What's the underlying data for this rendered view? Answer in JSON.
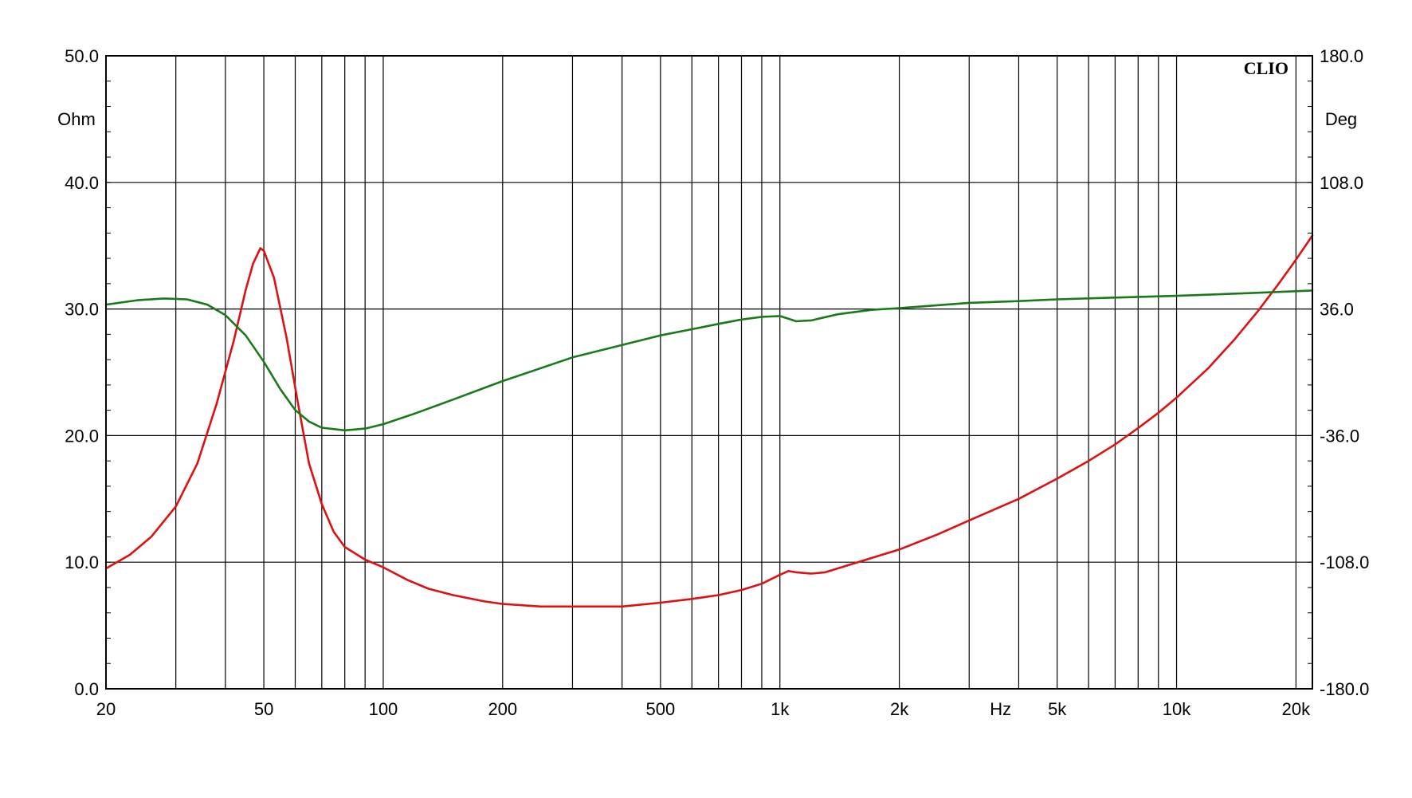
{
  "chart_data": {
    "type": "line",
    "brand": "CLIO",
    "x_axis": {
      "scale": "log",
      "range": [
        20,
        22000
      ],
      "unit_label": "Hz",
      "tick_labels": [
        {
          "value": 20,
          "label": "20"
        },
        {
          "value": 50,
          "label": "50"
        },
        {
          "value": 100,
          "label": "100"
        },
        {
          "value": 200,
          "label": "200"
        },
        {
          "value": 500,
          "label": "500"
        },
        {
          "value": 1000,
          "label": "1k"
        },
        {
          "value": 2000,
          "label": "2k"
        },
        {
          "value": 5000,
          "label": "5k"
        },
        {
          "value": 10000,
          "label": "10k"
        },
        {
          "value": 20000,
          "label": "20k"
        }
      ],
      "unit_label_at": 3600,
      "gridlines": [
        30,
        40,
        50,
        60,
        70,
        80,
        90,
        100,
        200,
        300,
        400,
        500,
        600,
        700,
        800,
        900,
        1000,
        2000,
        3000,
        4000,
        5000,
        6000,
        7000,
        8000,
        9000,
        10000,
        20000
      ]
    },
    "y_left": {
      "label": "Ohm",
      "range": [
        0,
        50
      ],
      "tick_labels": [
        {
          "value": 0,
          "label": "0.0"
        },
        {
          "value": 10,
          "label": "10.0"
        },
        {
          "value": 20,
          "label": "20.0"
        },
        {
          "value": 30,
          "label": "30.0"
        },
        {
          "value": 40,
          "label": "40.0"
        },
        {
          "value": 50,
          "label": "50.0"
        }
      ]
    },
    "y_right": {
      "label": "Deg",
      "range": [
        -180,
        180
      ],
      "tick_labels": [
        {
          "value": -180,
          "label": "-180.0"
        },
        {
          "value": -108,
          "label": "-108.0"
        },
        {
          "value": -36,
          "label": "-36.0"
        },
        {
          "value": 36,
          "label": "36.0"
        },
        {
          "value": 108,
          "label": "108.0"
        },
        {
          "value": 180,
          "label": "180.0"
        }
      ]
    },
    "grid": true,
    "series": [
      {
        "axis": "left",
        "color": "#dd1111",
        "points": [
          [
            20,
            9.5
          ],
          [
            23,
            10.6
          ],
          [
            26,
            12.0
          ],
          [
            30,
            14.4
          ],
          [
            34,
            17.8
          ],
          [
            38,
            22.5
          ],
          [
            42,
            27.5
          ],
          [
            45,
            31.5
          ],
          [
            47,
            33.6
          ],
          [
            49,
            34.8
          ],
          [
            50,
            34.6
          ],
          [
            53,
            32.5
          ],
          [
            57,
            27.8
          ],
          [
            61,
            22.5
          ],
          [
            65,
            17.8
          ],
          [
            70,
            14.6
          ],
          [
            75,
            12.4
          ],
          [
            80,
            11.2
          ],
          [
            90,
            10.2
          ],
          [
            100,
            9.6
          ],
          [
            115,
            8.6
          ],
          [
            130,
            7.9
          ],
          [
            150,
            7.4
          ],
          [
            180,
            6.9
          ],
          [
            200,
            6.7
          ],
          [
            250,
            6.5
          ],
          [
            300,
            6.5
          ],
          [
            400,
            6.5
          ],
          [
            500,
            6.8
          ],
          [
            600,
            7.1
          ],
          [
            700,
            7.4
          ],
          [
            800,
            7.8
          ],
          [
            900,
            8.3
          ],
          [
            1000,
            9.0
          ],
          [
            1050,
            9.3
          ],
          [
            1100,
            9.2
          ],
          [
            1200,
            9.1
          ],
          [
            1300,
            9.2
          ],
          [
            1500,
            9.8
          ],
          [
            2000,
            11.0
          ],
          [
            2500,
            12.2
          ],
          [
            3000,
            13.3
          ],
          [
            4000,
            15.0
          ],
          [
            5000,
            16.6
          ],
          [
            6000,
            18.0
          ],
          [
            7000,
            19.3
          ],
          [
            8000,
            20.6
          ],
          [
            9000,
            21.8
          ],
          [
            10000,
            23.0
          ],
          [
            12000,
            25.3
          ],
          [
            14000,
            27.6
          ],
          [
            16000,
            29.8
          ],
          [
            18000,
            31.9
          ],
          [
            20000,
            33.9
          ],
          [
            22000,
            35.8
          ]
        ]
      },
      {
        "axis": "right",
        "color": "#1a7a1a",
        "points": [
          [
            20,
            38.5
          ],
          [
            24,
            41.0
          ],
          [
            28,
            42.0
          ],
          [
            32,
            41.5
          ],
          [
            36,
            38.5
          ],
          [
            40,
            32.5
          ],
          [
            45,
            21.0
          ],
          [
            50,
            6.0
          ],
          [
            55,
            -9.5
          ],
          [
            60,
            -21.5
          ],
          [
            65,
            -28.0
          ],
          [
            70,
            -31.5
          ],
          [
            80,
            -33.0
          ],
          [
            90,
            -32.0
          ],
          [
            100,
            -29.5
          ],
          [
            120,
            -23.5
          ],
          [
            150,
            -15.5
          ],
          [
            200,
            -5.0
          ],
          [
            300,
            8.5
          ],
          [
            400,
            15.5
          ],
          [
            500,
            21.0
          ],
          [
            600,
            24.5
          ],
          [
            700,
            27.5
          ],
          [
            800,
            30.0
          ],
          [
            900,
            31.5
          ],
          [
            1000,
            32.0
          ],
          [
            1050,
            30.5
          ],
          [
            1100,
            29.0
          ],
          [
            1200,
            29.5
          ],
          [
            1400,
            33.0
          ],
          [
            1700,
            35.5
          ],
          [
            2000,
            36.5
          ],
          [
            3000,
            39.5
          ],
          [
            4000,
            40.5
          ],
          [
            5000,
            41.5
          ],
          [
            7000,
            42.5
          ],
          [
            10000,
            43.5
          ],
          [
            15000,
            45.0
          ],
          [
            22000,
            46.5
          ]
        ]
      }
    ]
  }
}
